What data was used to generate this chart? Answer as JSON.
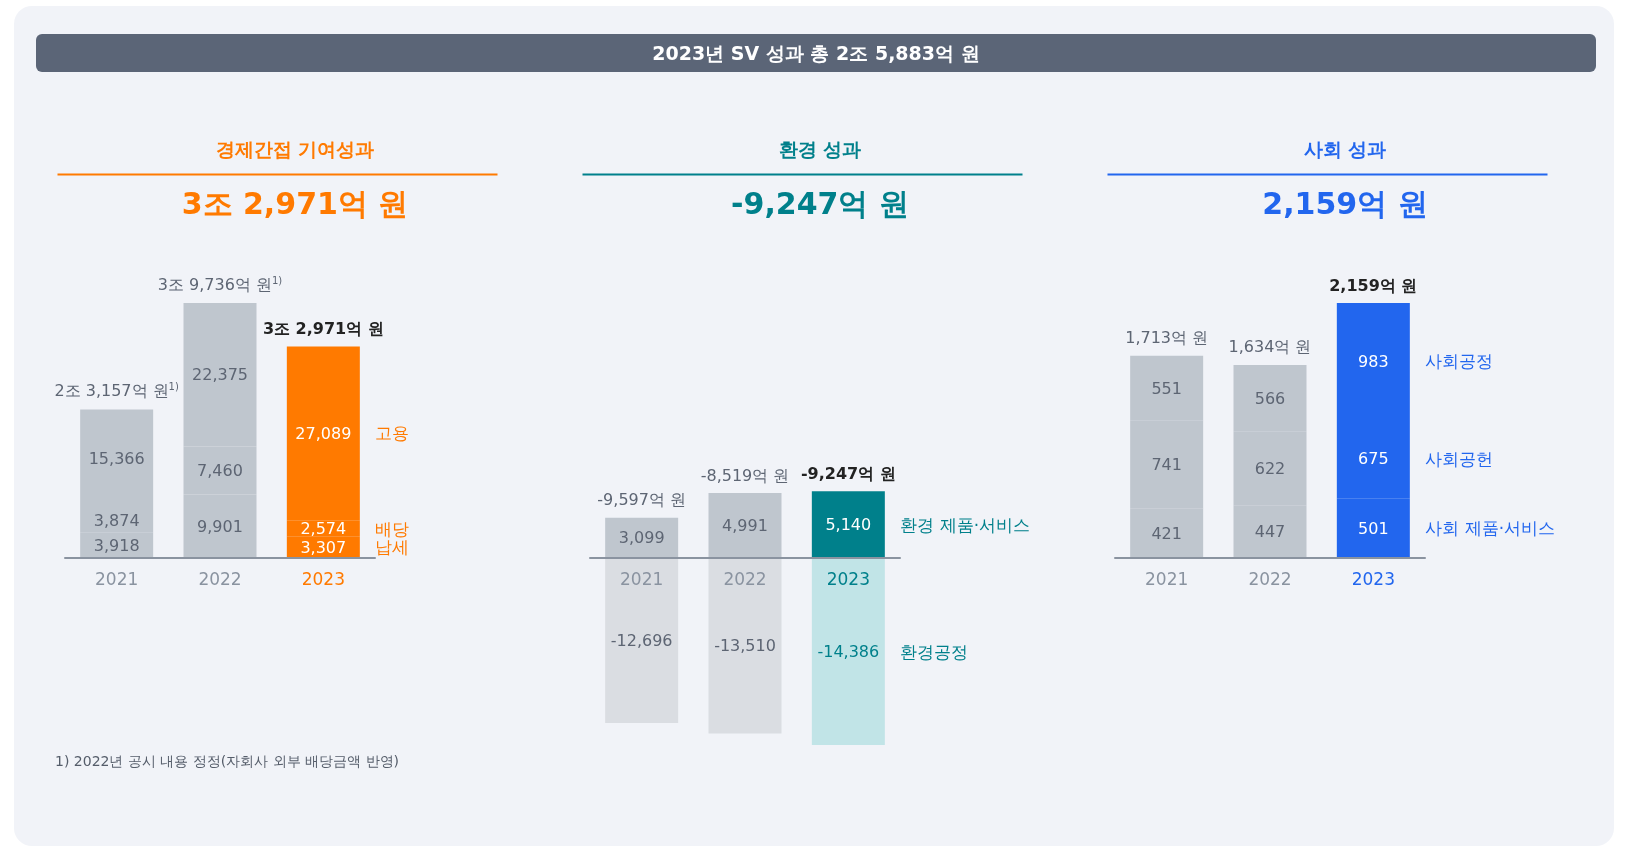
{
  "chart_data": [
    {
      "type": "other",
      "title": "2023년 SV 성과 총 2조 5,883억 원"
    },
    {
      "type": "bar",
      "title": "경제간접 기여성과",
      "subtitle": "3조 2,971억 원",
      "stacked": true,
      "categories": [
        "2021",
        "2022",
        "2023"
      ],
      "series": [
        {
          "name": "납세",
          "colors": [
            "#bfc6ce",
            "#bfc6ce",
            "#ff7a00"
          ],
          "values": [
            3918,
            9901,
            3307
          ],
          "value_labels": [
            "3,918",
            "9,901",
            "3,307"
          ]
        },
        {
          "name": "배당",
          "colors": [
            "#bfc6ce",
            "#bfc6ce",
            "#ff7a00"
          ],
          "values": [
            3874,
            7460,
            2574
          ],
          "value_labels": [
            "3,874",
            "7,460",
            "2,574"
          ]
        },
        {
          "name": "고용",
          "colors": [
            "#bfc6ce",
            "#bfc6ce",
            "#ff7a00"
          ],
          "values": [
            15366,
            22375,
            27089
          ],
          "value_labels": [
            "15,366",
            "22,375",
            "27,089"
          ]
        }
      ],
      "totals": [
        "2조 3,157억 원$^{1)}$",
        "3조 9,736억 원$^{1)}$",
        "3조 2,971억 원"
      ],
      "annotations": [
        "1) 2022년 공시 내용 정정(자회사 외부 배당금액 반영)"
      ]
    },
    {
      "type": "bar",
      "title": "환경 성과",
      "subtitle": "-9,247억 원",
      "stacked": true,
      "categories": [
        "2021",
        "2022",
        "2023"
      ],
      "series": [
        {
          "name": "환경 제품·서비스",
          "colors": [
            "#bfc6ce",
            "#bfc6ce",
            "#00808b"
          ],
          "values": [
            3099,
            4991,
            5140
          ],
          "value_labels": [
            "3,099",
            "4,991",
            "5,140"
          ]
        },
        {
          "name": "환경공정",
          "colors": [
            "#dadde2",
            "#dadde2",
            "#c1e4e7"
          ],
          "values": [
            -12696,
            -13510,
            -14386
          ],
          "value_labels": [
            "-12,696",
            "-13,510",
            "-14,386"
          ]
        }
      ],
      "totals": [
        "-9,597억 원",
        "-8,519억 원",
        "-9,247억 원"
      ]
    },
    {
      "type": "bar",
      "title": "사회 성과",
      "subtitle": "2,159억 원",
      "stacked": true,
      "categories": [
        "2021",
        "2022",
        "2023"
      ],
      "series": [
        {
          "name": "사회 제품·서비스",
          "colors": [
            "#bfc6ce",
            "#bfc6ce",
            "#2266ee"
          ],
          "values": [
            421,
            447,
            501
          ],
          "value_labels": [
            "421",
            "447",
            "501"
          ]
        },
        {
          "name": "사회공헌",
          "colors": [
            "#bfc6ce",
            "#bfc6ce",
            "#2266ee"
          ],
          "values": [
            741,
            622,
            675
          ],
          "value_labels": [
            "741",
            "622",
            "675"
          ]
        },
        {
          "name": "사회공정",
          "colors": [
            "#bfc6ce",
            "#bfc6ce",
            "#2266ee"
          ],
          "values": [
            551,
            566,
            983
          ],
          "value_labels": [
            "551",
            "566",
            "983"
          ]
        }
      ],
      "totals": [
        "1,713억 원",
        "1,634억 원",
        "2,159억 원"
      ]
    }
  ]
}
